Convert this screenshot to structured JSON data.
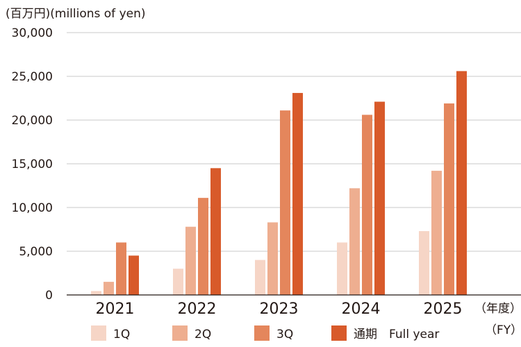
{
  "chart_data": {
    "type": "bar",
    "title": "",
    "ylabel": "(百万円)(millions of yen)",
    "xlabel": "（年度）",
    "xlabel_sub": "（FY）",
    "categories": [
      "2021",
      "2022",
      "2023",
      "2024",
      "2025"
    ],
    "ylim": [
      0,
      30000
    ],
    "yticks": [
      "0",
      "5,000",
      "10,000",
      "15,000",
      "20,000",
      "25,000",
      "30,000"
    ],
    "ytick_values": [
      0,
      5000,
      10000,
      15000,
      20000,
      25000,
      30000
    ],
    "grid": true,
    "legend_position": "bottom",
    "series": [
      {
        "name": "1Q",
        "color": "#f6d5c6",
        "values": [
          450,
          3000,
          4000,
          6000,
          7300
        ]
      },
      {
        "name": "2Q",
        "color": "#eeae90",
        "values": [
          1500,
          7800,
          8300,
          12200,
          14200
        ]
      },
      {
        "name": "3Q",
        "color": "#e4865c",
        "values": [
          6000,
          11100,
          21100,
          20600,
          21900
        ]
      },
      {
        "name": "通期　Full year",
        "color": "#d85a2a",
        "values": [
          4500,
          14500,
          23100,
          22100,
          25600
        ]
      }
    ]
  }
}
